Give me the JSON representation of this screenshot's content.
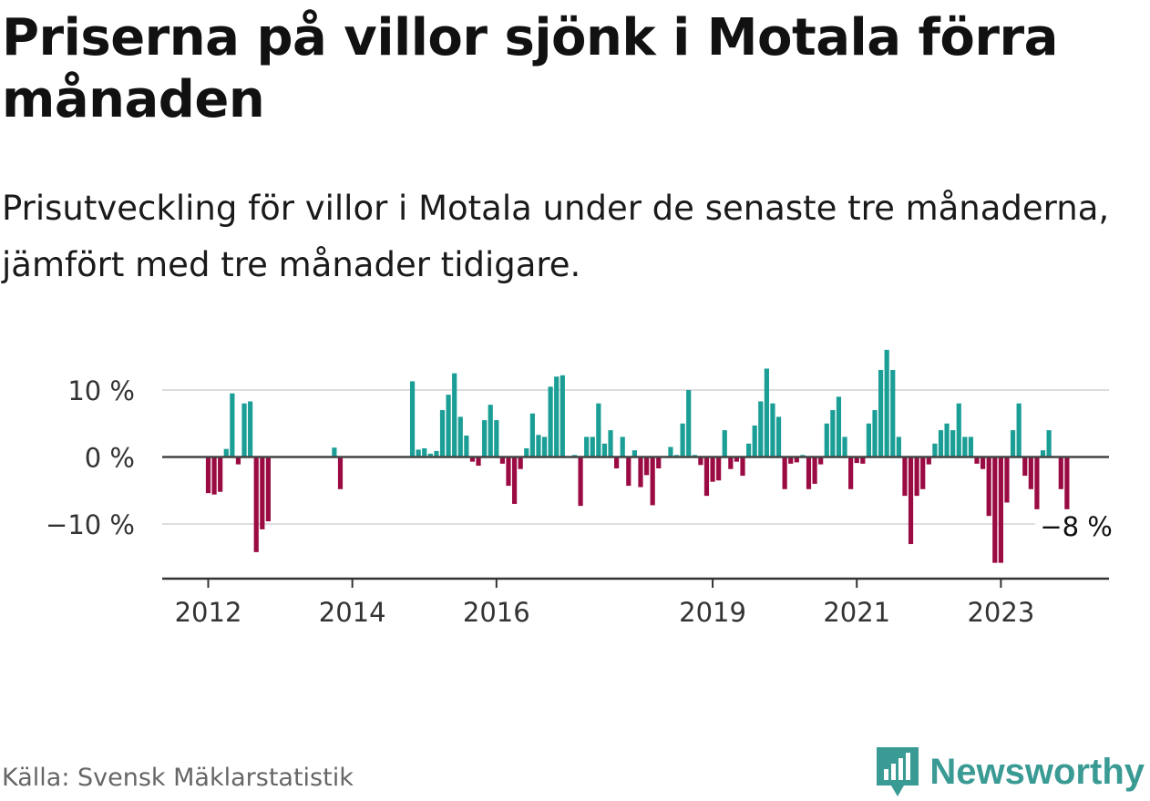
{
  "header": {
    "title": "Priserna på villor sjönk i Motala förra månaden",
    "subtitle": "Prisutveckling för villor i Motala under de senaste tre månaderna, jämfört med tre månader tidigare."
  },
  "footer": {
    "source": "Källa: Svensk Mäklarstatistik",
    "brand": "Newsworthy",
    "brand_icon": "bar-chart-logo-icon"
  },
  "colors": {
    "positive": "#1a9e96",
    "negative": "#9b0b43",
    "gridline": "#dddddd",
    "zero_line": "#444444",
    "brand": "#3a9a94"
  },
  "chart_data": {
    "type": "bar",
    "title": "",
    "xlabel": "",
    "ylabel": "",
    "ylim": [
      -18,
      16
    ],
    "y_ticks": [
      {
        "value": 10,
        "label": "10 %"
      },
      {
        "value": 0,
        "label": "0 %"
      },
      {
        "value": -10,
        "label": "−10 %"
      }
    ],
    "x_ticks": [
      {
        "date": "2012-01",
        "label": "2012"
      },
      {
        "date": "2014-01",
        "label": "2014"
      },
      {
        "date": "2016-01",
        "label": "2016"
      },
      {
        "date": "2019-01",
        "label": "2019"
      },
      {
        "date": "2021-01",
        "label": "2021"
      },
      {
        "date": "2023-01",
        "label": "2023"
      }
    ],
    "end_label": {
      "date": "2023-12",
      "text": "−8 %"
    },
    "grid": true,
    "series": [
      {
        "values": [
          {
            "date": "2012-01",
            "value": -5.4
          },
          {
            "date": "2012-02",
            "value": -5.6
          },
          {
            "date": "2012-03",
            "value": -5.2
          },
          {
            "date": "2012-04",
            "value": 1.2
          },
          {
            "date": "2012-05",
            "value": 9.5
          },
          {
            "date": "2012-06",
            "value": -1.1
          },
          {
            "date": "2012-07",
            "value": 8.0
          },
          {
            "date": "2012-08",
            "value": 8.3
          },
          {
            "date": "2012-09",
            "value": -14.2
          },
          {
            "date": "2012-10",
            "value": -10.8
          },
          {
            "date": "2012-11",
            "value": -9.6
          },
          {
            "date": "2013-10",
            "value": 1.4
          },
          {
            "date": "2013-11",
            "value": -4.8
          },
          {
            "date": "2014-11",
            "value": 11.3
          },
          {
            "date": "2014-12",
            "value": 1.1
          },
          {
            "date": "2015-01",
            "value": 1.3
          },
          {
            "date": "2015-02",
            "value": 0.5
          },
          {
            "date": "2015-03",
            "value": 0.9
          },
          {
            "date": "2015-04",
            "value": 7.0
          },
          {
            "date": "2015-05",
            "value": 9.3
          },
          {
            "date": "2015-06",
            "value": 12.5
          },
          {
            "date": "2015-07",
            "value": 6.0
          },
          {
            "date": "2015-08",
            "value": 3.2
          },
          {
            "date": "2015-09",
            "value": -0.7
          },
          {
            "date": "2015-10",
            "value": -1.3
          },
          {
            "date": "2015-11",
            "value": 5.5
          },
          {
            "date": "2015-12",
            "value": 7.8
          },
          {
            "date": "2016-01",
            "value": 5.5
          },
          {
            "date": "2016-02",
            "value": -1.0
          },
          {
            "date": "2016-03",
            "value": -4.3
          },
          {
            "date": "2016-04",
            "value": -7.0
          },
          {
            "date": "2016-05",
            "value": -1.8
          },
          {
            "date": "2016-06",
            "value": 1.3
          },
          {
            "date": "2016-07",
            "value": 6.5
          },
          {
            "date": "2016-08",
            "value": 3.3
          },
          {
            "date": "2016-09",
            "value": 3.0
          },
          {
            "date": "2016-10",
            "value": 10.5
          },
          {
            "date": "2016-11",
            "value": 12.0
          },
          {
            "date": "2016-12",
            "value": 12.2
          },
          {
            "date": "2017-02",
            "value": 0.3
          },
          {
            "date": "2017-03",
            "value": -7.3
          },
          {
            "date": "2017-04",
            "value": 3.0
          },
          {
            "date": "2017-05",
            "value": 3.0
          },
          {
            "date": "2017-06",
            "value": 8.0
          },
          {
            "date": "2017-07",
            "value": 2.0
          },
          {
            "date": "2017-08",
            "value": 4.0
          },
          {
            "date": "2017-09",
            "value": -1.7
          },
          {
            "date": "2017-10",
            "value": 3.0
          },
          {
            "date": "2017-11",
            "value": -4.3
          },
          {
            "date": "2017-12",
            "value": 1.0
          },
          {
            "date": "2018-01",
            "value": -4.5
          },
          {
            "date": "2018-02",
            "value": -2.7
          },
          {
            "date": "2018-03",
            "value": -7.2
          },
          {
            "date": "2018-04",
            "value": -1.7
          },
          {
            "date": "2018-06",
            "value": 1.5
          },
          {
            "date": "2018-07",
            "value": 0.3
          },
          {
            "date": "2018-08",
            "value": 5.0
          },
          {
            "date": "2018-09",
            "value": 10.0
          },
          {
            "date": "2018-10",
            "value": 0.3
          },
          {
            "date": "2018-11",
            "value": -1.2
          },
          {
            "date": "2018-12",
            "value": -5.8
          },
          {
            "date": "2019-01",
            "value": -3.7
          },
          {
            "date": "2019-02",
            "value": -3.5
          },
          {
            "date": "2019-03",
            "value": 4.0
          },
          {
            "date": "2019-04",
            "value": -1.8
          },
          {
            "date": "2019-05",
            "value": -0.7
          },
          {
            "date": "2019-06",
            "value": -2.8
          },
          {
            "date": "2019-07",
            "value": 2.0
          },
          {
            "date": "2019-08",
            "value": 4.7
          },
          {
            "date": "2019-09",
            "value": 8.3
          },
          {
            "date": "2019-10",
            "value": 13.2
          },
          {
            "date": "2019-11",
            "value": 8.0
          },
          {
            "date": "2019-12",
            "value": 6.0
          },
          {
            "date": "2020-01",
            "value": -4.8
          },
          {
            "date": "2020-02",
            "value": -1.0
          },
          {
            "date": "2020-03",
            "value": -0.8
          },
          {
            "date": "2020-04",
            "value": 0.3
          },
          {
            "date": "2020-05",
            "value": -4.8
          },
          {
            "date": "2020-06",
            "value": -4.0
          },
          {
            "date": "2020-07",
            "value": -1.1
          },
          {
            "date": "2020-08",
            "value": 5.0
          },
          {
            "date": "2020-09",
            "value": 7.0
          },
          {
            "date": "2020-10",
            "value": 9.0
          },
          {
            "date": "2020-11",
            "value": 3.0
          },
          {
            "date": "2020-12",
            "value": -4.8
          },
          {
            "date": "2021-01",
            "value": -0.9
          },
          {
            "date": "2021-02",
            "value": -1.0
          },
          {
            "date": "2021-03",
            "value": 5.0
          },
          {
            "date": "2021-04",
            "value": 7.0
          },
          {
            "date": "2021-05",
            "value": 13.0
          },
          {
            "date": "2021-06",
            "value": 16.0
          },
          {
            "date": "2021-07",
            "value": 13.0
          },
          {
            "date": "2021-08",
            "value": 3.0
          },
          {
            "date": "2021-09",
            "value": -5.8
          },
          {
            "date": "2021-10",
            "value": -13.0
          },
          {
            "date": "2021-11",
            "value": -5.8
          },
          {
            "date": "2021-12",
            "value": -4.8
          },
          {
            "date": "2022-01",
            "value": -1.1
          },
          {
            "date": "2022-02",
            "value": 2.0
          },
          {
            "date": "2022-03",
            "value": 4.0
          },
          {
            "date": "2022-04",
            "value": 5.0
          },
          {
            "date": "2022-05",
            "value": 4.0
          },
          {
            "date": "2022-06",
            "value": 8.0
          },
          {
            "date": "2022-07",
            "value": 3.0
          },
          {
            "date": "2022-08",
            "value": 3.0
          },
          {
            "date": "2022-09",
            "value": -1.0
          },
          {
            "date": "2022-10",
            "value": -1.8
          },
          {
            "date": "2022-11",
            "value": -8.8
          },
          {
            "date": "2022-12",
            "value": -15.8
          },
          {
            "date": "2023-01",
            "value": -15.8
          },
          {
            "date": "2023-02",
            "value": -6.8
          },
          {
            "date": "2023-03",
            "value": 4.0
          },
          {
            "date": "2023-04",
            "value": 8.0
          },
          {
            "date": "2023-05",
            "value": -2.8
          },
          {
            "date": "2023-06",
            "value": -4.8
          },
          {
            "date": "2023-07",
            "value": -7.8
          },
          {
            "date": "2023-08",
            "value": 1.0
          },
          {
            "date": "2023-09",
            "value": 4.0
          },
          {
            "date": "2023-11",
            "value": -4.8
          },
          {
            "date": "2023-12",
            "value": -7.8
          }
        ]
      }
    ]
  }
}
